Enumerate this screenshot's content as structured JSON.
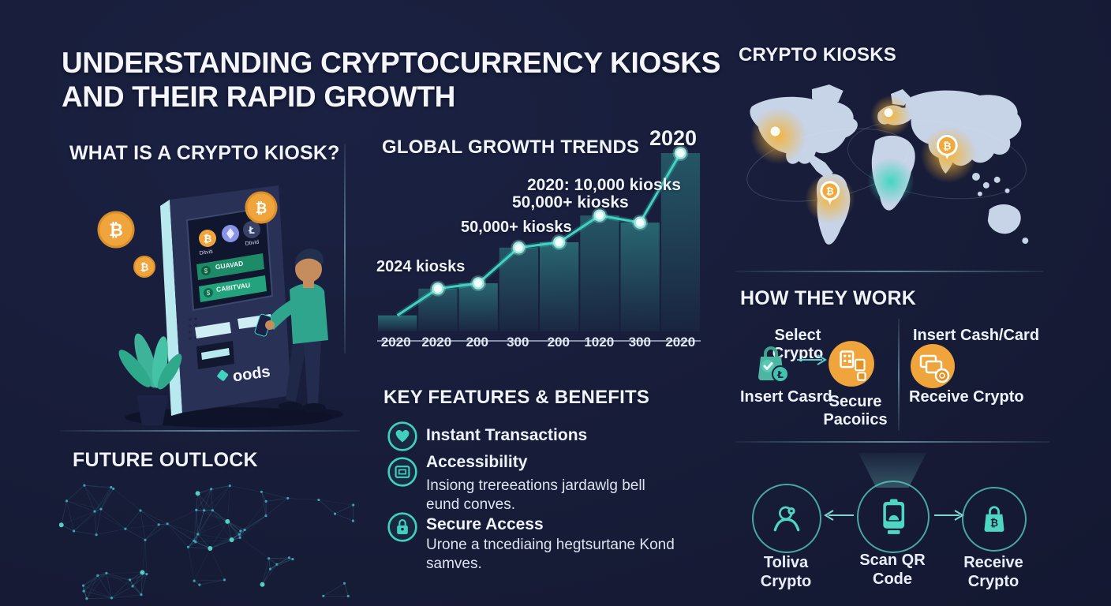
{
  "title": {
    "line1": "UNDERSTANDING CRYPTOCURRENCY KIOSKS",
    "line2": "AND THEIR RAPID GROWTH"
  },
  "sections": {
    "what": {
      "heading": "WHAT IS A CRYPTO KIOSK?"
    },
    "future": {
      "heading": "FUTURE OUTLOCK"
    },
    "growth": {
      "heading": "GLOBAL GROWTH TRENDS"
    },
    "features": {
      "heading": "KEY FEATURES & BENEFITS"
    },
    "map": {
      "heading": "CRYPTO KIOSKS"
    },
    "how": {
      "heading": "HOW THEY WORK"
    }
  },
  "kiosk_illustration": {
    "brand": "oods",
    "screen_button1": "GUAVAD",
    "screen_button2": "CABITVAU",
    "coin_label1": "Ditviti",
    "coin_label2": "Dtivid"
  },
  "chart_data": {
    "type": "line",
    "title": "GLOBAL GROWTH TRENDS",
    "categories": [
      "2020",
      "2020",
      "200",
      "300",
      "200",
      "1020",
      "300",
      "2020"
    ],
    "values": [
      9,
      24,
      27,
      47,
      50,
      65,
      61,
      100
    ],
    "ylim": [
      0,
      100
    ],
    "grid": false,
    "legend": false,
    "style": "teal line with glowing dots over gradient area columns",
    "annotations": [
      {
        "text": "2024 kiosks"
      },
      {
        "text": "50,000+ kiosks"
      },
      {
        "text": "50,000+ kiosks"
      },
      {
        "text": "2020: 10,000 kiosks"
      },
      {
        "text": "2020"
      }
    ]
  },
  "features": {
    "items": [
      {
        "title": "Instant Transactions",
        "desc": ""
      },
      {
        "title": "Accessibility",
        "desc": "Insiong trereeations jardawlg bell eund conves."
      },
      {
        "title": "Secure Access",
        "desc": "Urone a tncediaing hegtsurtane Kond samves."
      }
    ]
  },
  "how": {
    "select_label": "Select Crypto",
    "insert_card_label": "Insert Casrd",
    "secure_label": "Secure Pacoiics",
    "insert_cash_label": "Insert Cash/Card",
    "receive_label": "Receive Crypto"
  },
  "flow": {
    "left_label": "Toliva Crypto",
    "center_label": "Scan QR Code",
    "right_label": "Receive Crypto"
  },
  "colors": {
    "background": "#171c38",
    "accent_teal": "#3fd3c2",
    "accent_orange": "#f0a43c",
    "map_land": "#c7d3e6"
  }
}
